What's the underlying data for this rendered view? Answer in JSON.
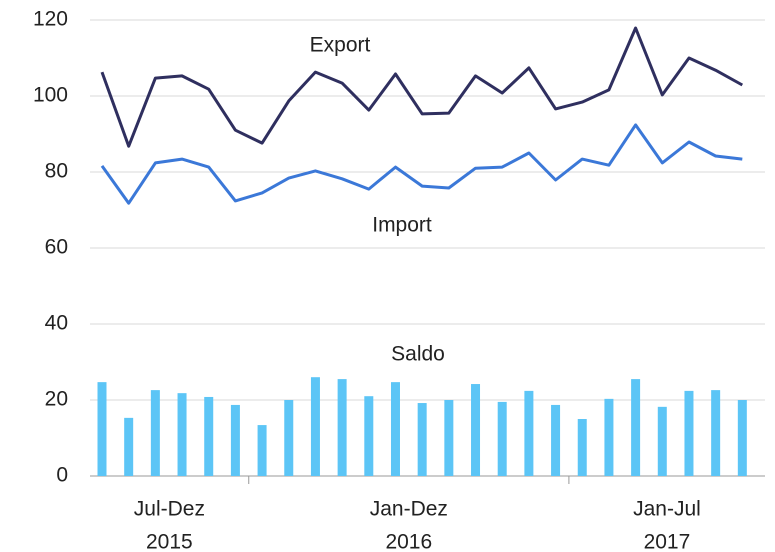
{
  "chart_data": {
    "type": "combo",
    "categories": [
      null,
      null,
      null,
      null,
      null,
      null,
      null,
      null,
      null,
      null,
      null,
      null,
      null,
      null,
      null,
      null,
      null,
      null,
      null,
      null,
      null,
      null,
      null,
      null,
      null
    ],
    "groups": [
      {
        "name": "Jul-Dez",
        "year": "2015",
        "span": 6
      },
      {
        "name": "Jan-Dez",
        "year": "2016",
        "span": 12
      },
      {
        "name": "Jan-Jul",
        "year": "2017",
        "span": 7
      }
    ],
    "series": [
      {
        "name": "Export",
        "type": "line",
        "color": "#2f2f5f",
        "values": [
          106.3,
          86.8,
          104.7,
          105.3,
          101.8,
          91,
          87.6,
          98.7,
          106.3,
          103.4,
          96.3,
          105.8,
          95.3,
          95.5,
          105.3,
          100.8,
          107.4,
          96.6,
          98.4,
          101.6,
          117.9,
          100.3,
          110,
          106.8,
          102.9
        ]
      },
      {
        "name": "Import",
        "type": "line",
        "color": "#3b78d8",
        "values": [
          81.6,
          71.8,
          82.4,
          83.4,
          81.3,
          72.4,
          74.5,
          78.4,
          80.3,
          78.2,
          75.5,
          81.3,
          76.3,
          75.8,
          81,
          81.3,
          85,
          77.9,
          83.4,
          81.8,
          92.4,
          82.4,
          87.9,
          84.2,
          83.4
        ]
      },
      {
        "name": "Saldo",
        "type": "bar",
        "color": "#5cc5f6",
        "values": [
          24.7,
          15.3,
          22.6,
          21.8,
          20.8,
          18.7,
          13.4,
          20,
          26,
          25.5,
          21,
          24.7,
          19.2,
          20,
          24.2,
          19.5,
          22.4,
          18.7,
          15,
          20.3,
          25.5,
          18.2,
          22.4,
          22.6,
          20
        ]
      }
    ],
    "ylim": [
      0,
      120
    ],
    "yticks": [
      0,
      20,
      40,
      60,
      80,
      100,
      120
    ],
    "grid": true
  }
}
